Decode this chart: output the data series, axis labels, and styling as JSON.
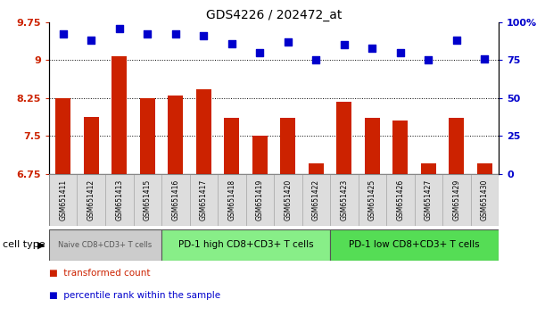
{
  "title": "GDS4226 / 202472_at",
  "samples": [
    "GSM651411",
    "GSM651412",
    "GSM651413",
    "GSM651415",
    "GSM651416",
    "GSM651417",
    "GSM651418",
    "GSM651419",
    "GSM651420",
    "GSM651422",
    "GSM651423",
    "GSM651425",
    "GSM651426",
    "GSM651427",
    "GSM651429",
    "GSM651430"
  ],
  "bar_values": [
    8.25,
    7.87,
    9.08,
    8.25,
    8.3,
    8.43,
    7.85,
    7.5,
    7.85,
    6.95,
    8.18,
    7.85,
    7.8,
    6.95,
    7.85,
    6.95
  ],
  "dot_values": [
    92,
    88,
    96,
    92,
    92,
    91,
    86,
    80,
    87,
    75,
    85,
    83,
    80,
    75,
    88,
    76
  ],
  "bar_color": "#cc2200",
  "dot_color": "#0000cc",
  "ylim_left": [
    6.75,
    9.75
  ],
  "ylim_right": [
    0,
    100
  ],
  "yticks_left": [
    6.75,
    7.5,
    8.25,
    9.0,
    9.75
  ],
  "yticks_right": [
    0,
    25,
    50,
    75,
    100
  ],
  "ytick_labels_left": [
    "6.75",
    "7.5",
    "8.25",
    "9",
    "9.75"
  ],
  "ytick_labels_right": [
    "0",
    "25",
    "50",
    "75",
    "100%"
  ],
  "groups": [
    {
      "label": "Naive CD8+CD3+ T cells",
      "start": 0,
      "end": 4,
      "color": "#cccccc",
      "text_color": "#555555"
    },
    {
      "label": "PD-1 high CD8+CD3+ T cells",
      "start": 4,
      "end": 10,
      "color": "#88ee88",
      "text_color": "#000000"
    },
    {
      "label": "PD-1 low CD8+CD3+ T cells",
      "start": 10,
      "end": 16,
      "color": "#55dd55",
      "text_color": "#000000"
    }
  ],
  "cell_type_label": "cell type",
  "legend_bar_label": "transformed count",
  "legend_dot_label": "percentile rank within the sample",
  "bar_width": 0.55,
  "dot_size": 28
}
